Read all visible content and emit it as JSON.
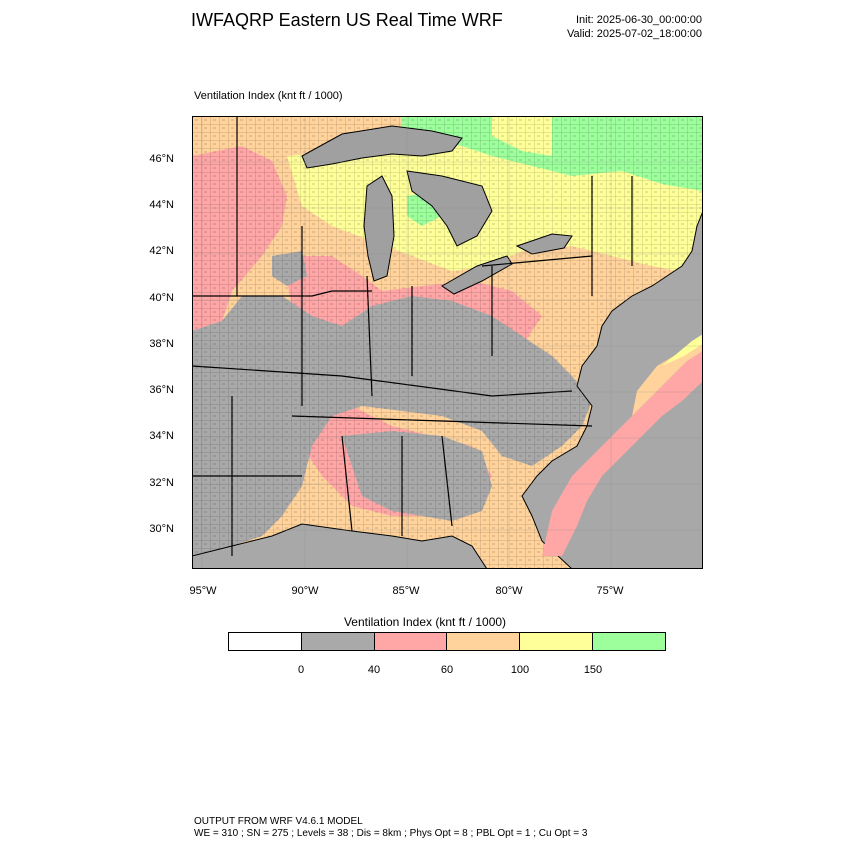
{
  "header": {
    "title": "IWFAQRP Eastern US Real Time WRF",
    "init": "Init: 2025-06-30_00:00:00",
    "valid": "Valid: 2025-07-02_18:00:00"
  },
  "plot": {
    "title": "Ventilation Index   (knt ft / 1000)",
    "lat_labels": [
      "46°N",
      "44°N",
      "42°N",
      "40°N",
      "38°N",
      "36°N",
      "34°N",
      "32°N",
      "30°N"
    ],
    "lon_labels": [
      "95°W",
      "90°W",
      "85°W",
      "80°W",
      "75°W"
    ]
  },
  "colorbar": {
    "title": "Ventilation Index  (knt ft / 1000)",
    "colors": [
      "#ffffff",
      "#a9a9a9",
      "#ffa6a6",
      "#ffd39b",
      "#ffff99",
      "#9cff9c"
    ],
    "labels": [
      "0",
      "40",
      "60",
      "100",
      "150"
    ]
  },
  "legend_colors": {
    "lake": "#a0a0a0",
    "ocean": "#a8a8a8"
  },
  "footer": {
    "line1": "OUTPUT FROM WRF V4.6.1 MODEL",
    "line2": "WE = 310 ; SN = 275 ; Levels = 38 ; Dis = 8km ; Phys Opt = 8 ; PBL Opt = 1 ; Cu Opt = 3"
  }
}
